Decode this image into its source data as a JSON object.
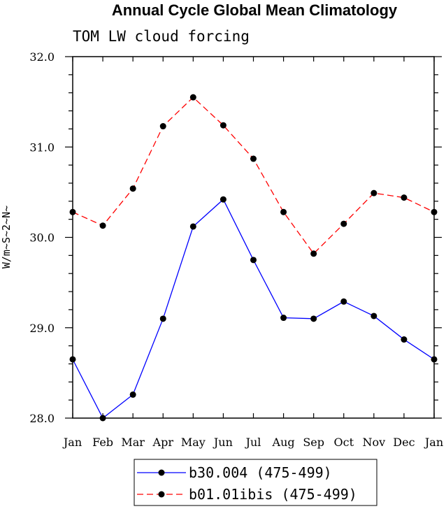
{
  "chart_data": {
    "type": "line",
    "title": "Annual Cycle Global Mean Climatology",
    "subtitle": "TOM LW cloud forcing",
    "ylabel": "W/m~S~2~N~",
    "xlabel": "",
    "categories": [
      "Jan",
      "Feb",
      "Mar",
      "Apr",
      "May",
      "Jun",
      "Jul",
      "Aug",
      "Sep",
      "Oct",
      "Nov",
      "Dec",
      "Jan"
    ],
    "ylim": [
      28.0,
      32.0
    ],
    "yticks": [
      "28.0",
      "29.0",
      "30.0",
      "31.0",
      "32.0"
    ],
    "grid": false,
    "legend_position": "bottom",
    "series": [
      {
        "name": "b30.004 (475-499)",
        "color": "#0000ff",
        "dash": "solid",
        "values": [
          28.65,
          28.0,
          28.26,
          29.1,
          30.12,
          30.42,
          29.75,
          29.11,
          29.1,
          29.29,
          29.13,
          28.87,
          28.65
        ]
      },
      {
        "name": "b01.01ibis (475-499)",
        "color": "#ff0000",
        "dash": "dashed",
        "values": [
          30.28,
          30.13,
          30.54,
          31.23,
          31.55,
          31.24,
          30.87,
          30.28,
          29.82,
          30.15,
          30.49,
          30.44,
          30.28
        ]
      }
    ]
  }
}
